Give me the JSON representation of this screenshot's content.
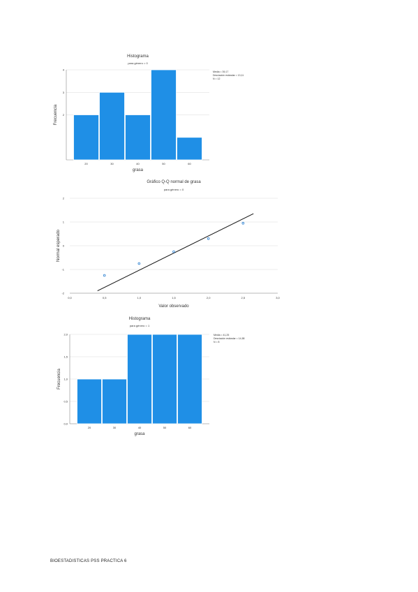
{
  "footer": {
    "text": "BIOESTADISTICAS PSS PRACTICA 6"
  },
  "chart_data": [
    {
      "type": "bar",
      "title": "Histograma",
      "subtitle": "para género = 0",
      "xlabel": "grasa",
      "ylabel": "Frecuencia",
      "categories": [
        "20",
        "30",
        "40",
        "50",
        "60"
      ],
      "values": [
        2,
        3,
        2,
        4,
        1
      ],
      "ylim": [
        0,
        4
      ],
      "yticks": [
        2,
        3,
        4
      ],
      "legend": [
        "Media = 39,17",
        "Desviación estándar = 13,11",
        "N = 12"
      ],
      "legend_position": "top-right",
      "color": "#1f8fe6",
      "grid": true
    },
    {
      "type": "scatter",
      "title": "Gráfico Q-Q normal de grasa",
      "subtitle": "para género = 0",
      "xlabel": "Valor observado",
      "ylabel": "Normal esperado",
      "xticks": [
        "0,0",
        "0,5",
        "1,0",
        "1,5",
        "2,0",
        "2,5",
        "3,0"
      ],
      "yticks": [
        "-2",
        "-1",
        "0",
        "1",
        "2"
      ],
      "xlim": [
        0,
        3
      ],
      "ylim": [
        -2,
        2
      ],
      "points": [
        [
          0.5,
          -1.25
        ],
        [
          1.0,
          -0.75
        ],
        [
          1.5,
          -0.25
        ],
        [
          2.0,
          0.3
        ],
        [
          2.5,
          0.95
        ]
      ],
      "reference_line": [
        [
          0.4,
          -1.9
        ],
        [
          2.65,
          1.35
        ]
      ],
      "grid": true
    },
    {
      "type": "bar",
      "title": "Histograma",
      "subtitle": "para género = 1",
      "xlabel": "grasa",
      "ylabel": "Frecuencia",
      "categories": [
        "20",
        "30",
        "40",
        "50",
        "60"
      ],
      "values": [
        1,
        1,
        2,
        2,
        2
      ],
      "ylim": [
        0,
        2
      ],
      "yticks": [
        "0,0",
        "0,5",
        "1,0",
        "1,5",
        "2,0"
      ],
      "legend": [
        "Media = 41,25",
        "Desviación estándar = 14,58",
        "N = 8"
      ],
      "legend_position": "top-right",
      "color": "#1f8fe6",
      "grid": true
    }
  ]
}
